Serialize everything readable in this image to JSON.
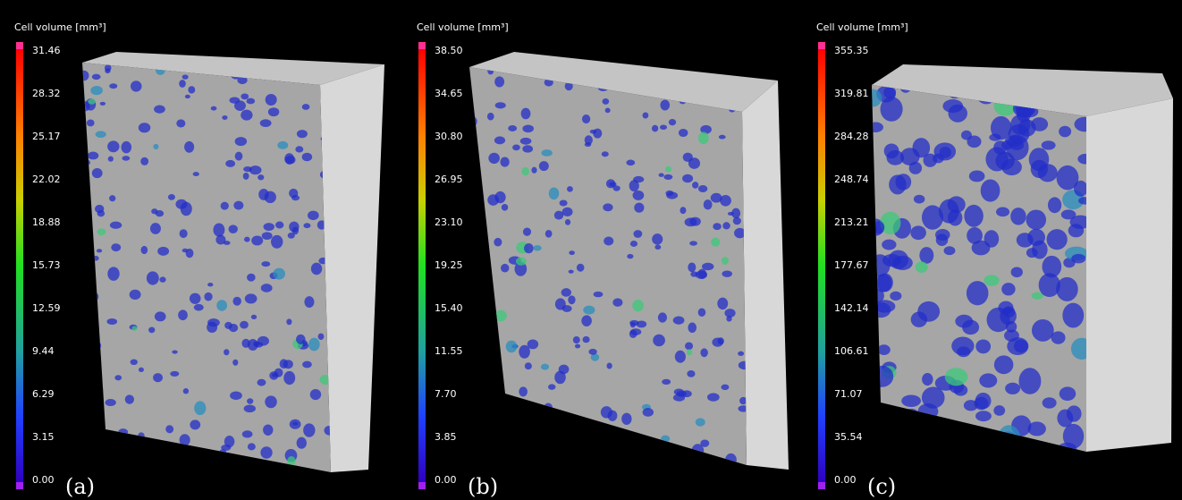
{
  "panels": [
    {
      "label": "(a)",
      "colorbar": {
        "title": "Cell volume [mm³]",
        "ticks": [
          "31.46",
          "28.32",
          "25.17",
          "22.02",
          "18.88",
          "15.73",
          "12.59",
          "9.44",
          "6.29",
          "3.15",
          "0.00"
        ]
      }
    },
    {
      "label": "(b)",
      "colorbar": {
        "title": "Cell volume [mm³]",
        "ticks": [
          "38.50",
          "34.65",
          "30.80",
          "26.95",
          "23.10",
          "19.25",
          "15.40",
          "11.55",
          "7.70",
          "3.85",
          "0.00"
        ]
      }
    },
    {
      "label": "(c)",
      "colorbar": {
        "title": "Cell volume [mm³]",
        "ticks": [
          "355.35",
          "319.81",
          "284.28",
          "248.74",
          "213.21",
          "177.67",
          "142.14",
          "106.61",
          "71.07",
          "35.54",
          "0.00"
        ]
      }
    }
  ]
}
